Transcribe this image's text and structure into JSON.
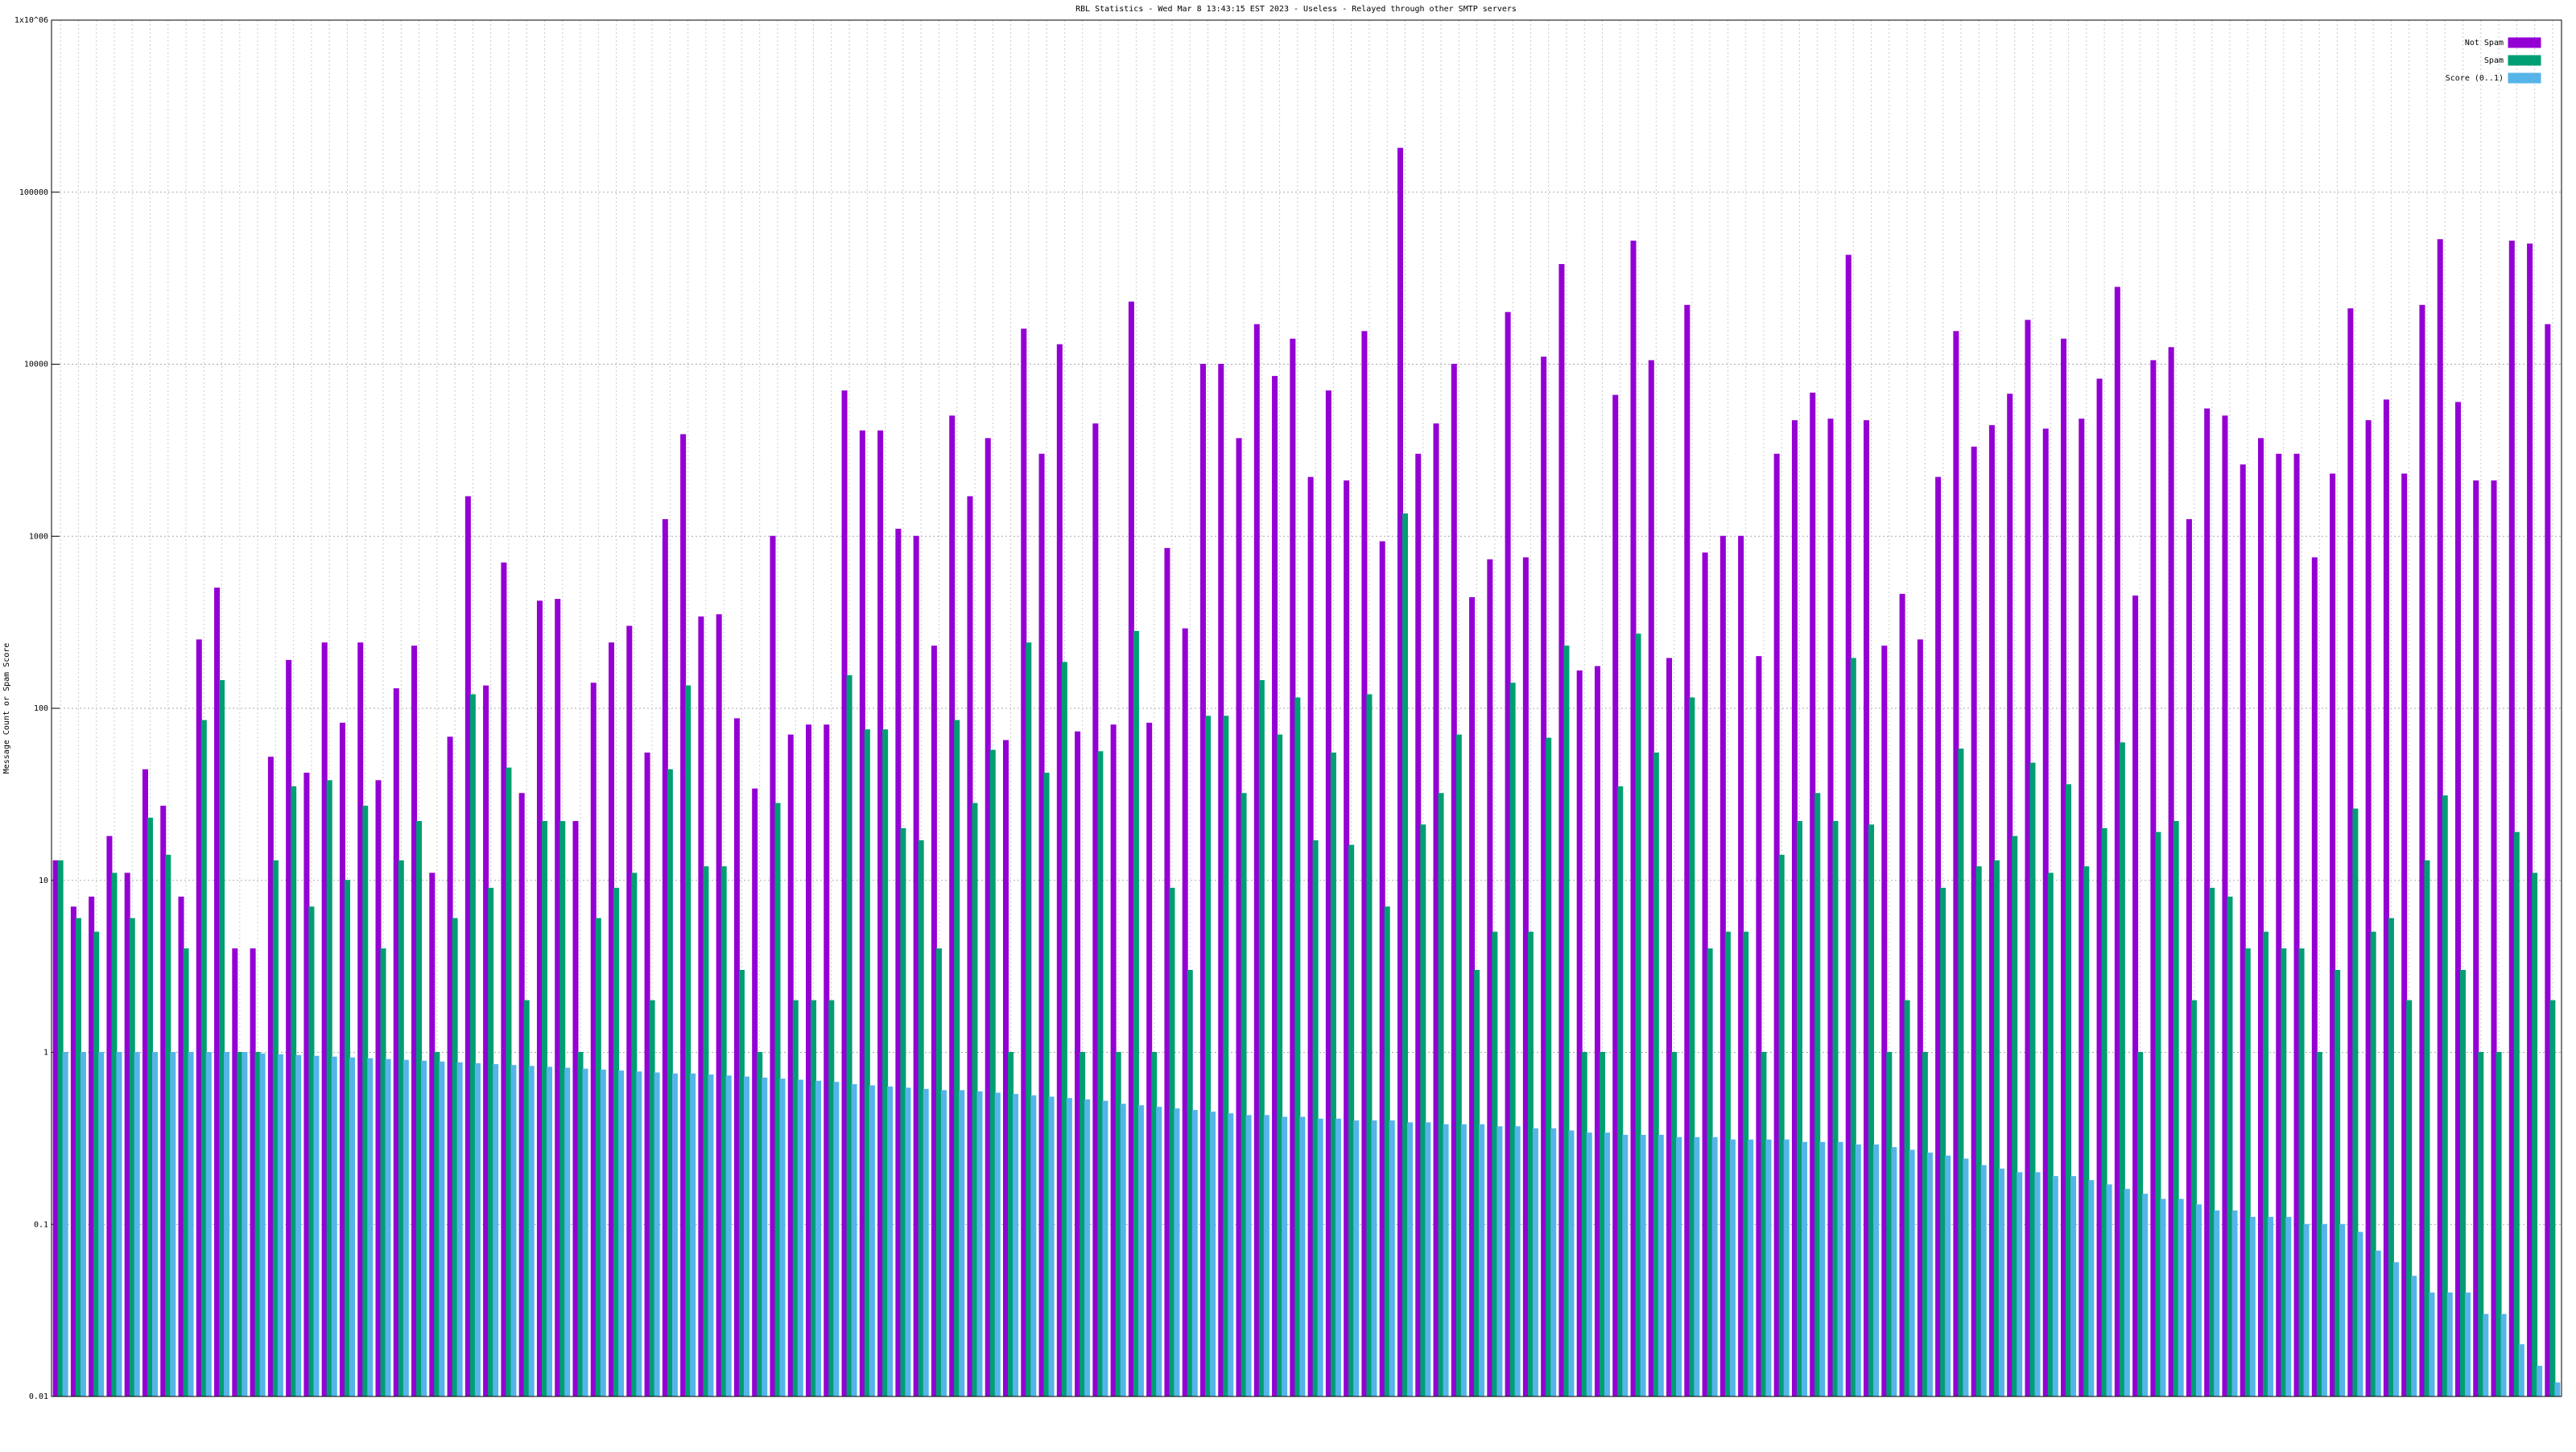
{
  "chart_data": {
    "type": "bar",
    "title": "RBL Statistics - Wed Mar  8 13:43:15 EST 2023 - Useless - Relayed through other SMTP servers",
    "ylabel": "Message Count or Spam Score",
    "log_scale": true,
    "grid": true,
    "legend": "top-right",
    "ylim": [
      0.01,
      1000000
    ],
    "yticks": [
      0.01,
      0.1,
      1,
      10,
      100,
      1000,
      10000,
      100000,
      {
        "value": 1000000,
        "label": "1x10^06"
      }
    ],
    "categories": [
      null,
      null,
      null,
      null,
      null,
      null,
      null,
      null,
      null,
      null,
      null,
      null,
      null,
      null,
      null,
      null,
      null,
      null,
      null,
      null,
      null,
      null,
      null,
      null,
      null,
      null,
      null,
      null,
      null,
      null,
      null,
      null,
      null,
      null,
      null,
      null,
      null,
      null,
      null,
      null,
      null,
      null,
      null,
      null,
      null,
      null,
      null,
      null,
      null,
      null,
      null,
      null,
      null,
      null,
      null,
      null,
      null,
      null,
      null,
      null,
      null,
      null,
      null,
      null,
      null,
      null,
      null,
      null,
      null,
      null,
      null,
      null,
      null,
      null,
      null,
      null,
      null,
      null,
      null,
      null,
      null,
      null,
      null,
      null,
      null,
      null,
      null,
      null,
      null,
      null,
      null,
      null,
      null,
      null,
      null,
      null,
      null,
      null,
      null,
      null,
      null,
      null,
      null,
      null,
      null,
      null,
      null,
      null,
      null,
      null,
      null,
      null,
      null,
      null,
      null,
      null,
      null,
      null,
      null,
      null,
      null,
      null,
      null,
      null,
      null,
      null,
      null,
      null,
      null,
      null,
      null,
      null,
      null,
      null,
      null,
      null,
      null,
      null,
      null,
      null
    ],
    "series": [
      {
        "name": "Not Spam",
        "color": "#9400d3",
        "values": [
          13,
          7,
          8,
          18,
          11,
          44,
          27,
          8,
          250,
          500,
          4,
          4,
          52,
          190,
          42,
          240,
          82,
          240,
          38,
          130,
          230,
          11,
          68,
          1700,
          135,
          700,
          32,
          420,
          430,
          22,
          140,
          240,
          300,
          55,
          1250,
          3900,
          340,
          350,
          87,
          34,
          1000,
          70,
          80,
          80,
          7000,
          4100,
          4100,
          1100,
          1000,
          230,
          5000,
          1700,
          3700,
          65,
          16000,
          3000,
          13000,
          73,
          4500,
          80,
          23000,
          82,
          850,
          290,
          10000,
          10000,
          3700,
          17000,
          8500,
          14000,
          2200,
          7000,
          2100,
          15500,
          930,
          180000,
          3000,
          4500,
          10000,
          440,
          730,
          20000,
          750,
          11000,
          38000,
          165,
          175,
          6600,
          52000,
          10500,
          195,
          22000,
          800,
          1000,
          1000,
          200,
          3000,
          4700,
          6800,
          4800,
          43000,
          4700,
          230,
          460,
          250,
          2200,
          15500,
          3300,
          4400,
          6700,
          18000,
          4200,
          14000,
          4800,
          8200,
          28000,
          450,
          10500,
          12500,
          1250,
          5500,
          5000,
          2600,
          3700,
          3000,
          3000,
          750,
          2300,
          21000,
          4700,
          6200,
          2300,
          22000,
          53000,
          6000,
          2100,
          2100,
          52000,
          50000,
          17000
        ]
      },
      {
        "name": "Spam",
        "color": "#009e73",
        "values": [
          13,
          6,
          5,
          11,
          6,
          23,
          14,
          4,
          85,
          145,
          1,
          1,
          13,
          35,
          7,
          38,
          10,
          27,
          4,
          13,
          22,
          1,
          6,
          120,
          9,
          45,
          2,
          22,
          22,
          1,
          6,
          9,
          11,
          2,
          44,
          135,
          12,
          12,
          3,
          1,
          28,
          2,
          2,
          2,
          155,
          75,
          75,
          20,
          17,
          4,
          85,
          28,
          57,
          1,
          240,
          42,
          185,
          1,
          56,
          1,
          280,
          1,
          9,
          3,
          90,
          90,
          32,
          145,
          70,
          115,
          17,
          55,
          16,
          120,
          7,
          1350,
          21,
          32,
          70,
          3,
          5,
          140,
          5,
          67,
          230,
          1,
          1,
          35,
          270,
          55,
          1,
          115,
          4,
          5,
          5,
          1,
          14,
          22,
          32,
          22,
          195,
          21,
          1,
          2,
          1,
          9,
          58,
          12,
          13,
          18,
          48,
          11,
          36,
          12,
          20,
          63,
          1,
          19,
          22,
          2,
          9,
          8,
          4,
          5,
          4,
          4,
          1,
          3,
          26,
          5,
          6,
          2,
          13,
          31,
          3,
          1,
          1,
          19,
          11,
          2
        ]
      },
      {
        "name": "Score (0..1)",
        "color": "#56b4e9",
        "values": [
          1,
          1,
          1,
          1,
          1,
          1,
          1,
          1,
          1,
          1,
          1,
          0.98,
          0.97,
          0.96,
          0.95,
          0.94,
          0.93,
          0.92,
          0.91,
          0.9,
          0.89,
          0.88,
          0.87,
          0.86,
          0.85,
          0.84,
          0.83,
          0.82,
          0.81,
          0.8,
          0.79,
          0.78,
          0.77,
          0.76,
          0.75,
          0.75,
          0.74,
          0.73,
          0.72,
          0.71,
          0.7,
          0.69,
          0.68,
          0.67,
          0.65,
          0.64,
          0.63,
          0.62,
          0.61,
          0.6,
          0.6,
          0.59,
          0.58,
          0.57,
          0.56,
          0.55,
          0.54,
          0.53,
          0.52,
          0.5,
          0.49,
          0.48,
          0.47,
          0.46,
          0.45,
          0.44,
          0.43,
          0.43,
          0.42,
          0.42,
          0.41,
          0.41,
          0.4,
          0.4,
          0.4,
          0.39,
          0.39,
          0.38,
          0.38,
          0.38,
          0.37,
          0.37,
          0.36,
          0.36,
          0.35,
          0.34,
          0.34,
          0.33,
          0.33,
          0.33,
          0.32,
          0.32,
          0.32,
          0.31,
          0.31,
          0.31,
          0.31,
          0.3,
          0.3,
          0.3,
          0.29,
          0.29,
          0.28,
          0.27,
          0.26,
          0.25,
          0.24,
          0.22,
          0.21,
          0.2,
          0.2,
          0.19,
          0.19,
          0.18,
          0.17,
          0.16,
          0.15,
          0.14,
          0.14,
          0.13,
          0.12,
          0.12,
          0.11,
          0.11,
          0.11,
          0.1,
          0.1,
          0.1,
          0.09,
          0.07,
          0.06,
          0.05,
          0.04,
          0.04,
          0.04,
          0.03,
          0.03,
          0.02,
          0.015,
          0.012
        ]
      }
    ]
  }
}
